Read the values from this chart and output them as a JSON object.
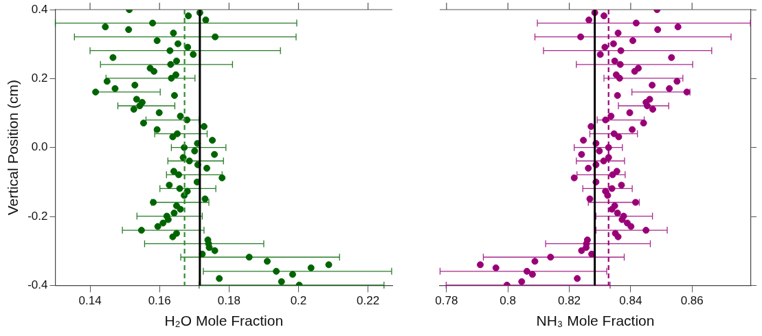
{
  "chart_data": [
    {
      "type": "scatter",
      "xlabel": "H₂O Mole Fraction",
      "ylabel": "Vertical Position (cm)",
      "xlim": [
        0.13,
        0.227
      ],
      "xticks": [
        0.14,
        0.16,
        0.18,
        0.2,
        0.22
      ],
      "ylim": [
        -0.4,
        0.4
      ],
      "yticks": [
        -0.4,
        -0.2,
        {
          "value": 0,
          "label": "0.0"
        },
        0.2,
        0.4
      ],
      "grid": false,
      "legend": false,
      "marker": "circle",
      "series": [
        {
          "color": "#006400",
          "x": [
            0.1513,
            0.1716,
            0.1683,
            0.1733,
            0.158,
            0.1444,
            0.1511,
            0.164,
            0.176,
            0.1593,
            0.1653,
            0.1681,
            0.163,
            0.1697,
            0.1466,
            0.1649,
            0.1632,
            0.1573,
            0.1584,
            0.1647,
            0.1634,
            0.1449,
            0.1529,
            0.1472,
            0.1416,
            0.1643,
            0.1534,
            0.155,
            0.1543,
            0.1526,
            0.1599,
            0.166,
            0.1679,
            0.1554,
            0.1728,
            0.1593,
            0.1651,
            0.1638,
            0.1752,
            0.1709,
            0.1671,
            0.1701,
            0.1758,
            0.1668,
            0.1686,
            0.171,
            0.1736,
            0.1641,
            0.1655,
            0.178,
            0.1708,
            0.1628,
            0.1658,
            0.168,
            0.1671,
            0.1731,
            0.1582,
            0.1649,
            0.166,
            0.1642,
            0.1621,
            0.1625,
            0.161,
            0.1595,
            0.1548,
            0.1649,
            0.1638,
            0.1739,
            0.1741,
            0.1743,
            0.1759,
            0.1723,
            0.1858,
            0.191,
            0.2087,
            0.2036,
            0.1936,
            0.1983,
            0.1772,
            0.1951,
            0.2002
          ],
          "values": [
            0.4,
            0.391,
            0.382,
            0.37,
            0.361,
            0.35,
            0.342,
            0.332,
            0.321,
            0.31,
            0.301,
            0.291,
            0.281,
            0.27,
            0.261,
            0.251,
            0.241,
            0.23,
            0.221,
            0.211,
            0.201,
            0.192,
            0.181,
            0.171,
            0.161,
            0.151,
            0.14,
            0.131,
            0.121,
            0.111,
            0.101,
            0.091,
            0.08,
            0.071,
            0.061,
            0.052,
            0.04,
            0.031,
            0.021,
            0.012,
            0,
            -0.01,
            -0.02,
            -0.029,
            -0.039,
            -0.05,
            -0.06,
            -0.069,
            -0.079,
            -0.088,
            -0.1,
            -0.109,
            -0.119,
            -0.127,
            -0.139,
            -0.149,
            -0.159,
            -0.169,
            -0.179,
            -0.19,
            -0.199,
            -0.209,
            -0.219,
            -0.229,
            -0.24,
            -0.249,
            -0.259,
            -0.268,
            -0.279,
            -0.29,
            -0.299,
            -0.309,
            -0.318,
            -0.33,
            -0.34,
            -0.349,
            -0.359,
            -0.368,
            -0.38,
            -0.389,
            -0.399
          ],
          "xerrors": [
            null,
            null,
            null,
            null,
            [
              0.13,
              0.1995
            ],
            null,
            null,
            null,
            [
              0.1355,
              0.1993
            ],
            null,
            null,
            null,
            [
              0.14,
              0.1948
            ],
            null,
            null,
            null,
            [
              0.143,
              0.181
            ],
            null,
            null,
            null,
            [
              0.1446,
              0.1702
            ],
            null,
            null,
            null,
            [
              0.1416,
              0.1602
            ],
            null,
            null,
            null,
            [
              0.148,
              0.1644
            ],
            null,
            null,
            null,
            [
              0.1561,
              0.1714
            ],
            null,
            null,
            null,
            [
              0.1586,
              0.1737
            ],
            null,
            null,
            null,
            [
              0.1634,
              0.1791
            ],
            null,
            null,
            null,
            [
              0.1624,
              0.1784
            ],
            null,
            null,
            null,
            [
              0.162,
              0.178
            ],
            null,
            null,
            null,
            [
              0.1601,
              0.1762
            ],
            null,
            null,
            null,
            [
              0.1577,
              0.1742
            ],
            null,
            null,
            null,
            [
              0.1535,
              0.1723
            ],
            null,
            null,
            null,
            [
              0.1493,
              0.1728
            ],
            null,
            null,
            null,
            [
              0.1557,
              0.19
            ],
            null,
            null,
            null,
            [
              0.1661,
              0.2118
            ],
            null,
            null,
            null,
            [
              0.1726,
              0.2268
            ],
            null,
            null,
            null,
            [
              0.1714,
              0.2246
            ]
          ]
        }
      ],
      "ref_lines": [
        {
          "axis": "x",
          "value": 0.1716,
          "color": "#000000",
          "line_style": "solid"
        },
        {
          "axis": "x",
          "value": 0.1672,
          "color": "#2e8b2e",
          "line_style": "dashed"
        }
      ]
    },
    {
      "type": "scatter",
      "xlabel": "NH₃ Mole Fraction",
      "xlim": [
        0.7778,
        0.8792
      ],
      "xticks": [
        0.78,
        0.8,
        0.82,
        0.84,
        0.86
      ],
      "ylim": [
        -0.4,
        0.4
      ],
      "yticks": [
        -0.4,
        -0.2,
        0,
        0.2,
        0.4
      ],
      "tick_labels": "x",
      "grid": false,
      "legend": false,
      "marker": "circle",
      "series": [
        {
          "color": "#990077",
          "x": [
            0.8486,
            0.8283,
            0.8313,
            0.8264,
            0.8418,
            0.8554,
            0.8488,
            0.8359,
            0.8237,
            0.8407,
            0.8344,
            0.8316,
            0.8368,
            0.8301,
            0.8533,
            0.8348,
            0.8366,
            0.8425,
            0.8413,
            0.8353,
            0.8364,
            0.8551,
            0.847,
            0.8526,
            0.8583,
            0.8357,
            0.8462,
            0.845,
            0.8454,
            0.8472,
            0.8397,
            0.8336,
            0.8318,
            0.8442,
            0.8271,
            0.8405,
            0.8346,
            0.8361,
            0.8246,
            0.8287,
            0.8328,
            0.8298,
            0.824,
            0.8328,
            0.8312,
            0.8287,
            0.8262,
            0.8355,
            0.8341,
            0.8216,
            0.8287,
            0.837,
            0.8339,
            0.8318,
            0.8325,
            0.8267,
            0.8416,
            0.8348,
            0.8339,
            0.8357,
            0.8377,
            0.8372,
            0.8389,
            0.8401,
            0.845,
            0.835,
            0.8359,
            0.8259,
            0.8256,
            0.8255,
            0.824,
            0.8273,
            0.8139,
            0.8088,
            0.791,
            0.7961,
            0.8062,
            0.808,
            0.8226,
            0.8045,
            0.7997
          ],
          "values": [
            0.4,
            0.391,
            0.382,
            0.37,
            0.361,
            0.35,
            0.342,
            0.332,
            0.321,
            0.31,
            0.301,
            0.291,
            0.281,
            0.27,
            0.261,
            0.251,
            0.241,
            0.23,
            0.221,
            0.211,
            0.201,
            0.192,
            0.181,
            0.171,
            0.161,
            0.151,
            0.14,
            0.131,
            0.121,
            0.111,
            0.101,
            0.091,
            0.08,
            0.071,
            0.061,
            0.052,
            0.04,
            0.031,
            0.021,
            0.012,
            0,
            -0.01,
            -0.02,
            -0.029,
            -0.039,
            -0.05,
            -0.06,
            -0.069,
            -0.079,
            -0.088,
            -0.1,
            -0.109,
            -0.119,
            -0.127,
            -0.139,
            -0.149,
            -0.159,
            -0.169,
            -0.179,
            -0.19,
            -0.199,
            -0.209,
            -0.219,
            -0.229,
            -0.24,
            -0.249,
            -0.259,
            -0.268,
            -0.279,
            -0.29,
            -0.299,
            -0.309,
            -0.318,
            -0.33,
            -0.34,
            -0.349,
            -0.359,
            -0.368,
            -0.38,
            -0.389,
            -0.399
          ],
          "xerrors": [
            null,
            null,
            null,
            null,
            [
              0.8096,
              0.879
            ],
            null,
            null,
            null,
            [
              0.8088,
              0.8727
            ],
            null,
            null,
            null,
            [
              0.8116,
              0.8664
            ],
            null,
            null,
            null,
            [
              0.8223,
              0.8602
            ],
            null,
            null,
            null,
            [
              0.8313,
              0.857
            ],
            null,
            null,
            null,
            [
              0.8404,
              0.8593
            ],
            null,
            null,
            null,
            [
              0.836,
              0.8524
            ],
            null,
            null,
            null,
            [
              0.8291,
              0.8444
            ],
            null,
            null,
            null,
            [
              0.8267,
              0.8422
            ],
            null,
            null,
            null,
            [
              0.8216,
              0.8373
            ],
            null,
            null,
            null,
            [
              0.8223,
              0.838
            ],
            null,
            null,
            null,
            [
              0.8225,
              0.8382
            ],
            null,
            null,
            null,
            [
              0.8244,
              0.8405
            ],
            null,
            null,
            null,
            [
              0.8262,
              0.8428
            ],
            null,
            null,
            null,
            [
              0.8287,
              0.8471
            ],
            null,
            null,
            null,
            [
              0.8287,
              0.8519
            ],
            null,
            null,
            null,
            [
              0.8123,
              0.8464
            ],
            null,
            null,
            null,
            [
              0.792,
              0.8379
            ],
            null,
            null,
            null,
            [
              0.7779,
              0.8322
            ],
            null,
            null,
            null,
            [
              0.7799,
              0.8333
            ]
          ]
        }
      ],
      "ref_lines": [
        {
          "axis": "x",
          "value": 0.8283,
          "color": "#000000",
          "line_style": "solid"
        },
        {
          "axis": "x",
          "value": 0.8328,
          "color": "#990077",
          "line_style": "dashed"
        }
      ]
    }
  ]
}
